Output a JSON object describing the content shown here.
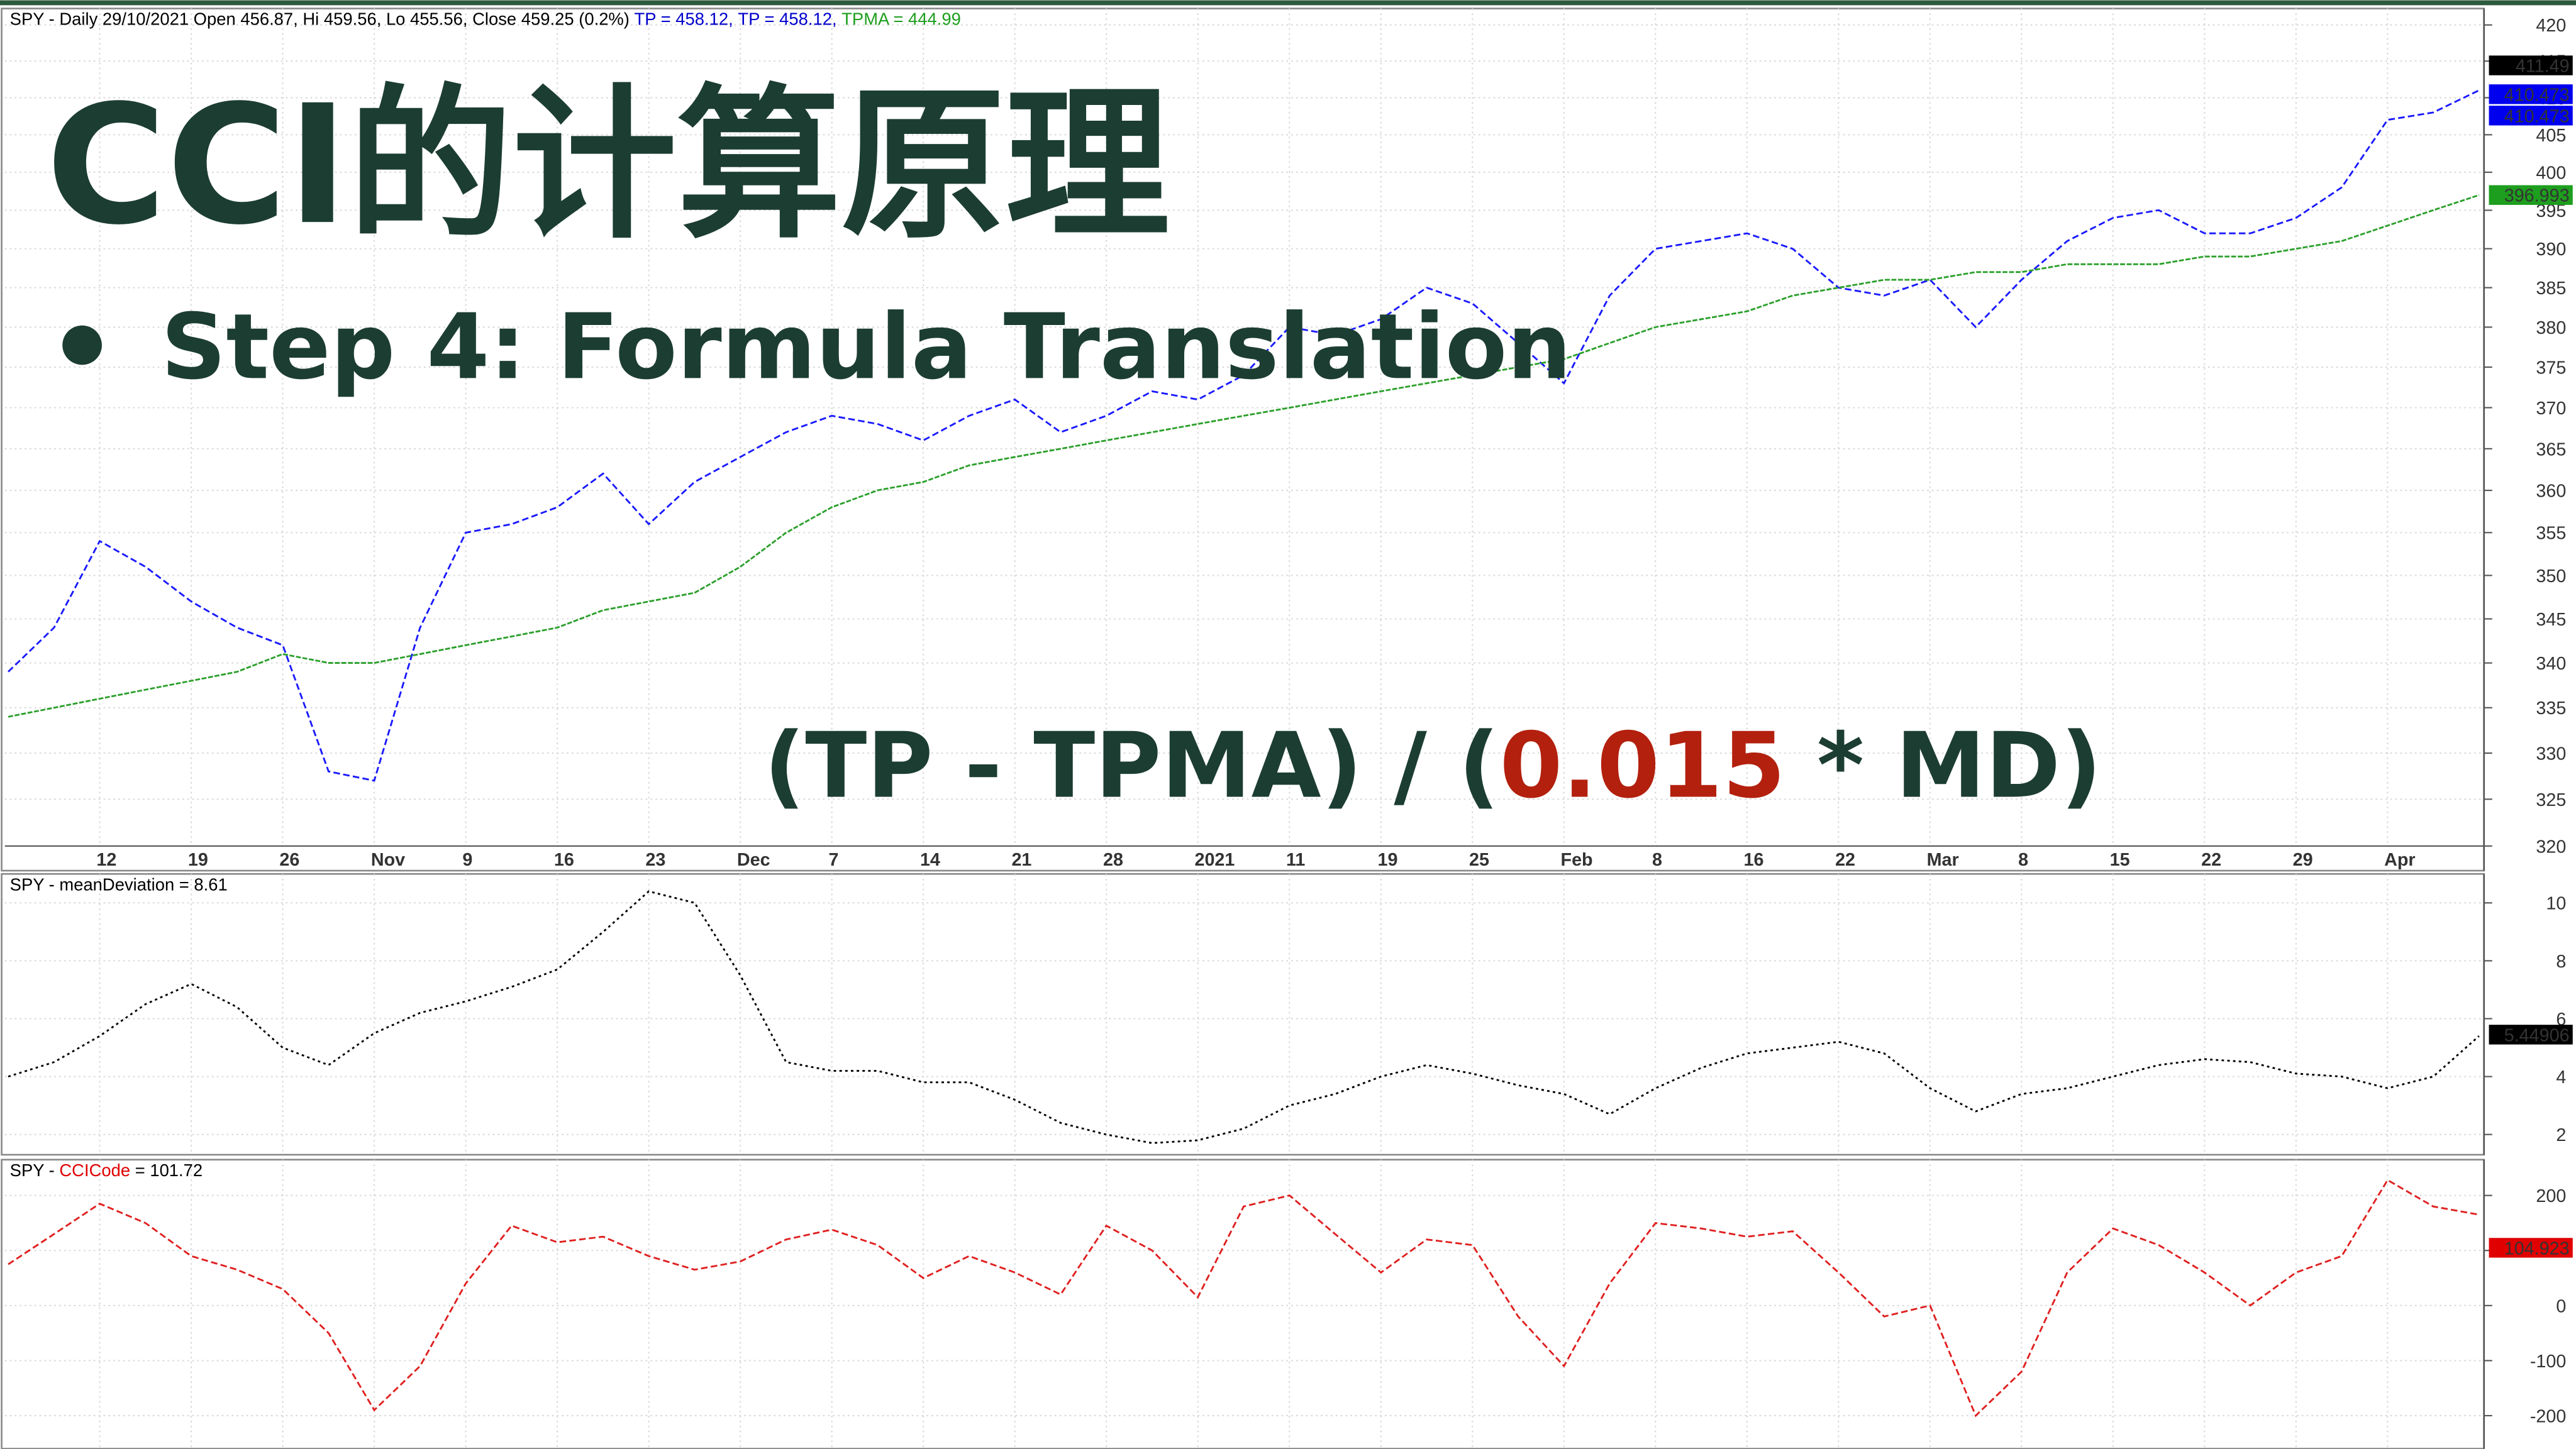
{
  "slide": {
    "title": "CCI的计算原理",
    "bullet": "Step 4: Formula Translation",
    "formula": [
      {
        "text": "(TP - TPMA) / (",
        "color": "#1c3d32"
      },
      {
        "text": "0.015",
        "color": "#b3200e"
      },
      {
        "text": " * MD)",
        "color": "#1c3d32"
      }
    ]
  },
  "chart_data": [
    {
      "type": "line",
      "log": true,
      "grid": true,
      "title_parts": [
        {
          "text": "SPY - Daily 29/10/2021 Open 456.87, Hi 459.56, Lo 455.56, Close 459.25 (0.2%) ",
          "color": "#000000"
        },
        {
          "text": "TP = 458.12, ",
          "color": "#0000cc"
        },
        {
          "text": "TP = 458.12, ",
          "color": "#0000cc"
        },
        {
          "text": "TPMA = 444.99",
          "color": "#1e9e1e"
        }
      ],
      "categories": [
        null,
        null,
        "12",
        null,
        "19",
        null,
        "26",
        null,
        "Nov",
        null,
        "9",
        null,
        "16",
        null,
        "23",
        null,
        "Dec",
        null,
        "7",
        null,
        "14",
        null,
        "21",
        null,
        "28",
        null,
        "2021",
        null,
        "11",
        null,
        "19",
        null,
        "25",
        null,
        "Feb",
        null,
        "8",
        null,
        "16",
        null,
        "22",
        null,
        "Mar",
        null,
        "8",
        null,
        "15",
        null,
        "22",
        null,
        "29",
        null,
        "Apr",
        null,
        null
      ],
      "series": [
        {
          "color": "#1a1aff",
          "dash": "4 2",
          "values": [
            339,
            344,
            354,
            351,
            347,
            344,
            342,
            328,
            327,
            344,
            355,
            356,
            358,
            362,
            356,
            361,
            364,
            367,
            369,
            368,
            366,
            369,
            371,
            367,
            369,
            372,
            371,
            374,
            380,
            379,
            381,
            385,
            383,
            378,
            373,
            384,
            390,
            391,
            392,
            390,
            385,
            384,
            386,
            380,
            386,
            391,
            394,
            395,
            392,
            392,
            394,
            398,
            407,
            408,
            411
          ]
        },
        {
          "color": "#2ca02c",
          "dash": "3 1",
          "values": [
            334,
            335,
            336,
            337,
            338,
            339,
            341,
            340,
            340,
            341,
            342,
            343,
            344,
            346,
            347,
            348,
            351,
            355,
            358,
            360,
            361,
            363,
            364,
            365,
            366,
            367,
            368,
            369,
            370,
            371,
            372,
            373,
            374,
            375,
            376,
            378,
            380,
            381,
            382,
            384,
            385,
            386,
            386,
            387,
            387,
            388,
            388,
            388,
            389,
            389,
            390,
            391,
            393,
            395,
            397
          ]
        }
      ],
      "markers": [
        {
          "value": 411.49,
          "color": "#000000"
        },
        {
          "value": 410.473,
          "color": "#0000ee"
        },
        {
          "value": 410.473,
          "color": "#0000ee"
        },
        {
          "value": 396.993,
          "color": "#1e9e1e"
        }
      ],
      "ylim": [
        320,
        420
      ],
      "yticks": [
        320,
        325,
        330,
        335,
        340,
        345,
        350,
        355,
        360,
        365,
        370,
        375,
        380,
        385,
        390,
        395,
        400,
        405,
        410,
        415,
        420
      ]
    },
    {
      "type": "line",
      "grid": true,
      "title_parts": [
        {
          "text": "SPY - meanDeviation = 8.61",
          "color": "#000000"
        }
      ],
      "series": [
        {
          "color": "#000000",
          "dash": "1.5 2",
          "values": [
            4.0,
            4.5,
            5.4,
            6.5,
            7.2,
            6.4,
            5.0,
            4.4,
            5.5,
            6.2,
            6.6,
            7.1,
            7.7,
            9.0,
            10.4,
            10.0,
            7.5,
            4.5,
            4.2,
            4.2,
            3.8,
            3.8,
            3.2,
            2.4,
            2.0,
            1.7,
            1.8,
            2.2,
            3.0,
            3.4,
            4.0,
            4.4,
            4.1,
            3.7,
            3.4,
            2.7,
            3.6,
            4.3,
            4.8,
            5.0,
            5.2,
            4.8,
            3.6,
            2.8,
            3.4,
            3.6,
            4.0,
            4.4,
            4.6,
            4.5,
            4.1,
            4.0,
            3.6,
            4.0,
            5.4
          ]
        }
      ],
      "markers": [
        {
          "value": 5.44906,
          "color": "#000000"
        }
      ],
      "ylim": [
        1.3,
        11
      ],
      "yticks": [
        2,
        4,
        6,
        8,
        10
      ]
    },
    {
      "type": "line",
      "grid": true,
      "title_parts": [
        {
          "text": "SPY - ",
          "color": "#000000"
        },
        {
          "text": "CCICode",
          "color": "#e00000"
        },
        {
          "text": " = 101.72",
          "color": "#000000"
        }
      ],
      "series": [
        {
          "color": "#e02020",
          "dash": "4 2",
          "values": [
            75,
            130,
            185,
            150,
            90,
            65,
            30,
            -50,
            -190,
            -110,
            40,
            145,
            115,
            125,
            90,
            65,
            80,
            120,
            138,
            110,
            50,
            90,
            60,
            20,
            145,
            100,
            15,
            180,
            200,
            130,
            60,
            120,
            110,
            -20,
            -110,
            40,
            150,
            140,
            125,
            135,
            60,
            -20,
            0,
            -200,
            -120,
            60,
            140,
            110,
            60,
            0,
            60,
            90,
            228,
            180,
            165
          ]
        }
      ],
      "markers": [
        {
          "value": 104.923,
          "color": "#e00000"
        }
      ],
      "ylim": [
        -260,
        265
      ],
      "yticks": [
        -200,
        -100,
        0,
        100,
        200
      ]
    }
  ]
}
